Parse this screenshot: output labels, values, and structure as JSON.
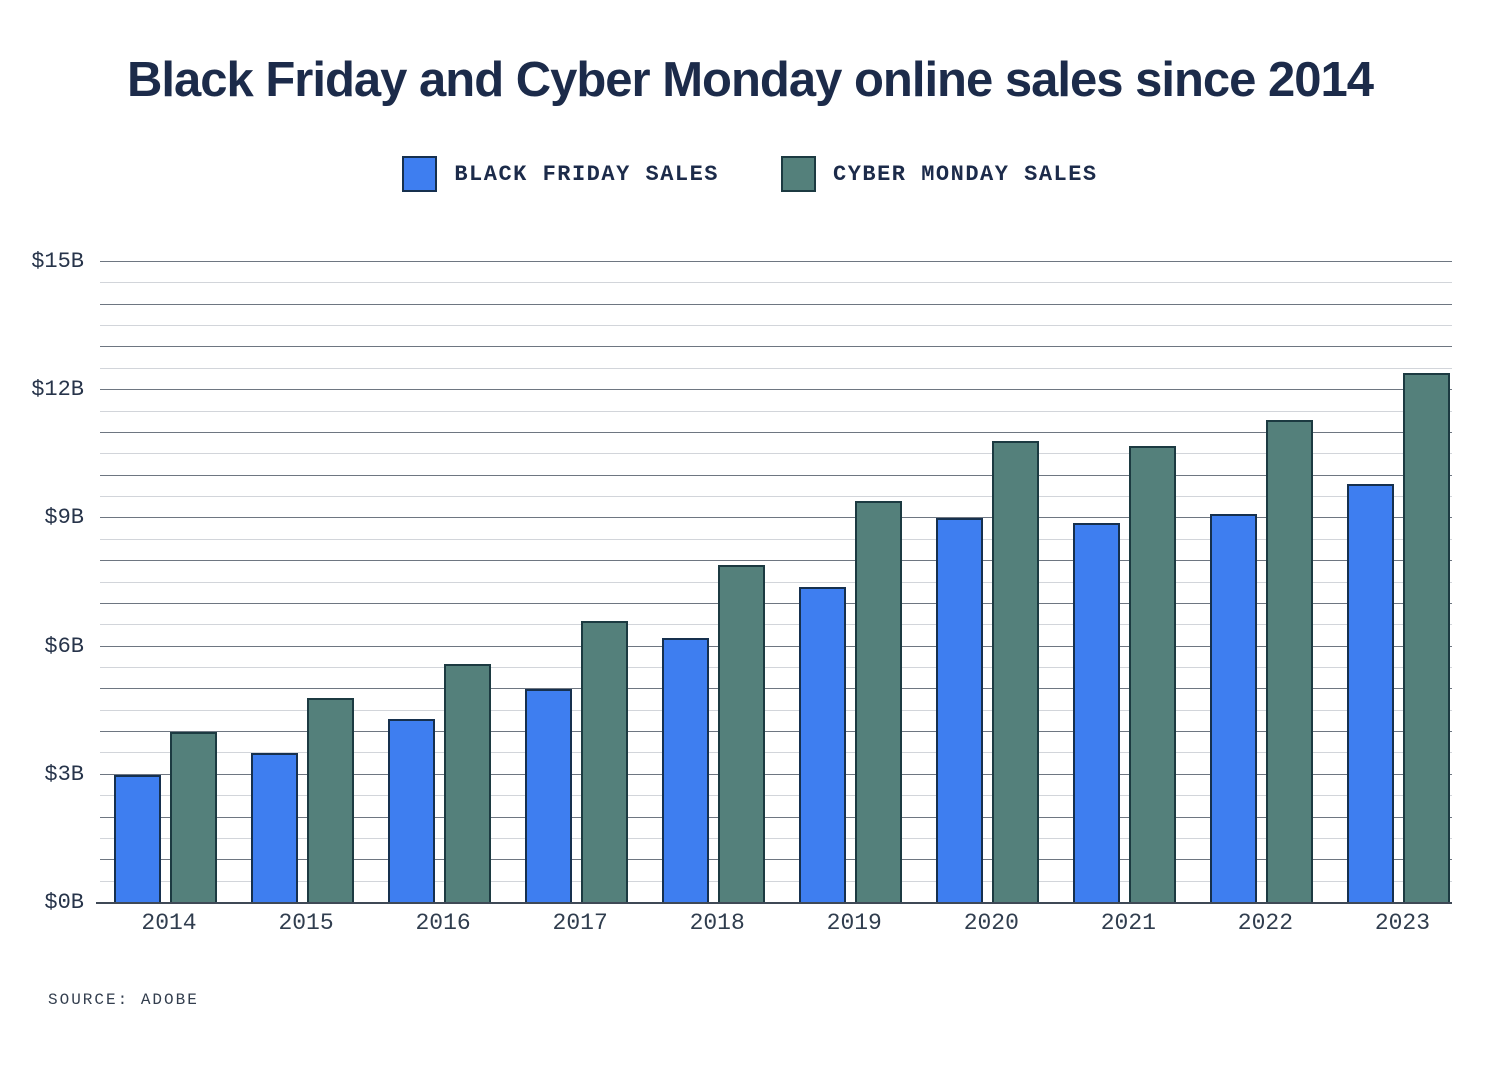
{
  "title": "Black Friday and Cyber Monday online sales since 2014",
  "legend": {
    "items": [
      {
        "label": "BLACK FRIDAY SALES",
        "color": "#3e7ef0",
        "border": "#16304e"
      },
      {
        "label": "CYBER MONDAY SALES",
        "color": "#54807b",
        "border": "#1c3a41"
      }
    ]
  },
  "source": "SOURCE: ADOBE",
  "colors": {
    "title_text": "#1c2b4a",
    "axis_text": "#2d3a4c",
    "grid_major": "#6e7681",
    "grid_minor": "#d2d5da",
    "axis_line": "#3f4956",
    "black_friday_fill": "#3e7ef0",
    "black_friday_border": "#16304e",
    "cyber_monday_fill": "#54807b",
    "cyber_monday_border": "#1c3a41"
  },
  "chart_data": {
    "type": "bar",
    "title": "Black Friday and Cyber Monday online sales since 2014",
    "unit": "billions of US dollars",
    "categories": [
      "2014",
      "2015",
      "2016",
      "2017",
      "2018",
      "2019",
      "2020",
      "2021",
      "2022",
      "2023"
    ],
    "series": [
      {
        "name": "Black Friday Sales",
        "color": "#3e7ef0",
        "border": "#16304e",
        "values": [
          3.0,
          3.5,
          4.3,
          5.0,
          6.2,
          7.4,
          9.0,
          8.9,
          9.1,
          9.8
        ]
      },
      {
        "name": "Cyber Monday Sales",
        "color": "#54807b",
        "border": "#1c3a41",
        "values": [
          4.0,
          4.8,
          5.6,
          6.6,
          7.9,
          9.4,
          10.8,
          10.7,
          11.3,
          12.4
        ]
      }
    ],
    "ylim": [
      0,
      15
    ],
    "y_major_step": 3,
    "y_minor_step": 0.5,
    "y_tick_labels": [
      "$0B",
      "$3B",
      "$6B",
      "$9B",
      "$12B",
      "$15B"
    ],
    "xlabel": "",
    "ylabel": "",
    "grid": true,
    "legend_position": "top-center"
  }
}
